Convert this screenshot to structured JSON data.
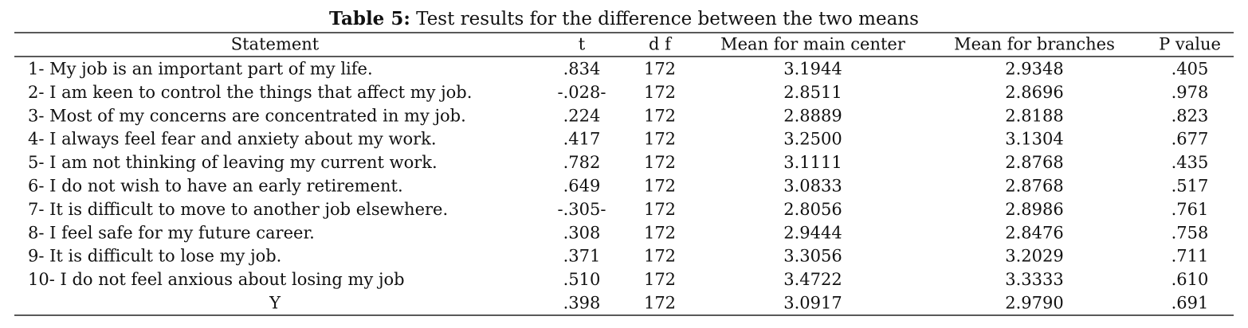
{
  "caption": {
    "label": "Table 5:",
    "text": "Test results for the difference between the two means"
  },
  "table": {
    "header": [
      "Statement",
      "t",
      "d f",
      "Mean for main center",
      "Mean for branches",
      "P value"
    ],
    "rows": [
      [
        "1- My job is an important part of my life.",
        ".834",
        "172",
        "3.1944",
        "2.9348",
        ".405"
      ],
      [
        "2- I am keen to control the things that affect my job.",
        "-.028-",
        "172",
        "2.8511",
        "2.8696",
        ".978"
      ],
      [
        "3- Most of my concerns are concentrated in my job.",
        ".224",
        "172",
        "2.8889",
        "2.8188",
        ".823"
      ],
      [
        "4- I always feel fear and anxiety about my work.",
        ".417",
        "172",
        "3.2500",
        "3.1304",
        ".677"
      ],
      [
        "5- I am not thinking of leaving my current work.",
        ".782",
        "172",
        "3.1111",
        "2.8768",
        ".435"
      ],
      [
        "6- I do not wish to have an early retirement.",
        ".649",
        "172",
        "3.0833",
        "2.8768",
        ".517"
      ],
      [
        "7- It is difficult to move to another job elsewhere.",
        "-.305-",
        "172",
        "2.8056",
        "2.8986",
        ".761"
      ],
      [
        "8- I feel safe for my future career.",
        ".308",
        "172",
        "2.9444",
        "2.8476",
        ".758"
      ],
      [
        "9- It is difficult to lose my job.",
        ".371",
        "172",
        "3.3056",
        "3.2029",
        ".711"
      ],
      [
        "10- I do not feel anxious about losing my job",
        ".510",
        "172",
        "3.4722",
        "3.3333",
        ".610"
      ],
      [
        "Y",
        ".398",
        "172",
        "3.0917",
        "2.9790",
        ".691"
      ]
    ]
  }
}
